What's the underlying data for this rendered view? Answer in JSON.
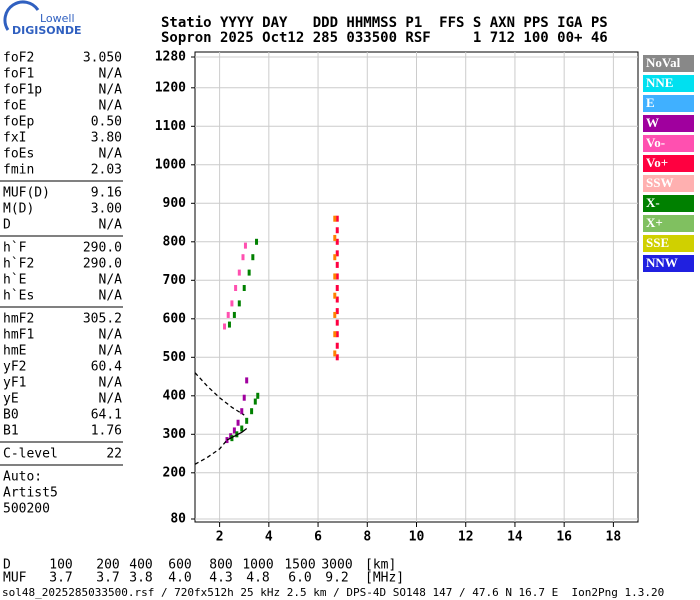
{
  "logo": {
    "line1": "Lowell",
    "line2": "DIGISONDE"
  },
  "header": {
    "line1": "Statio YYYY DAY   DDD HHMMSS P1  FFS S AXN PPS IGA PS",
    "line2": "Sopron 2025 Oct12 285 033500 RSF     1 712 100 00+ 46"
  },
  "params": {
    "groups": [
      [
        [
          "foF2",
          "3.050"
        ],
        [
          "foF1",
          "N/A"
        ],
        [
          "foF1p",
          "N/A"
        ],
        [
          "foE",
          "N/A"
        ],
        [
          "foEp",
          "0.50"
        ],
        [
          "fxI",
          "3.80"
        ],
        [
          "foEs",
          "N/A"
        ],
        [
          "fmin",
          "2.03"
        ]
      ],
      [
        [
          "MUF(D)",
          "9.16"
        ],
        [
          "M(D)",
          "3.00"
        ],
        [
          "D",
          "N/A"
        ]
      ],
      [
        [
          "h`F",
          "290.0"
        ],
        [
          "h`F2",
          "290.0"
        ],
        [
          "h`E",
          "N/A"
        ],
        [
          "h`Es",
          "N/A"
        ]
      ],
      [
        [
          "hmF2",
          "305.2"
        ],
        [
          "hmF1",
          "N/A"
        ],
        [
          "hmE",
          "N/A"
        ],
        [
          "yF2",
          "60.4"
        ],
        [
          "yF1",
          "N/A"
        ],
        [
          "yE",
          "N/A"
        ],
        [
          "B0",
          "64.1"
        ],
        [
          "B1",
          "1.76"
        ]
      ],
      [
        [
          "C-level",
          "22"
        ]
      ]
    ],
    "auto": [
      "Auto:",
      "Artist5",
      "500200"
    ]
  },
  "chart_data": {
    "type": "scatter",
    "xlim": [
      1,
      19
    ],
    "xticks": [
      2,
      4,
      6,
      8,
      10,
      12,
      14,
      16,
      18
    ],
    "ylim": [
      80,
      1280
    ],
    "yticks": [
      80,
      200,
      300,
      400,
      500,
      600,
      700,
      800,
      900,
      1000,
      1100,
      1200,
      1280
    ],
    "grid": true,
    "series": [
      {
        "color": "#a0009e",
        "style": "points",
        "x": [
          2.3,
          2.45,
          2.6,
          2.75,
          2.9,
          3.0,
          3.1
        ],
        "values": [
          285,
          295,
          310,
          330,
          360,
          395,
          440
        ]
      },
      {
        "color": "#008000",
        "style": "points",
        "x": [
          2.5,
          2.7,
          2.9,
          3.1,
          3.3,
          3.45,
          3.55
        ],
        "values": [
          290,
          300,
          315,
          335,
          360,
          385,
          400
        ]
      },
      {
        "color": "#ff50b0",
        "style": "points",
        "x": [
          2.2,
          2.35,
          2.5,
          2.65,
          2.8,
          2.95,
          3.05
        ],
        "values": [
          580,
          610,
          640,
          680,
          720,
          760,
          790
        ]
      },
      {
        "color": "#008000",
        "style": "points",
        "x": [
          2.4,
          2.6,
          2.8,
          3.0,
          3.2,
          3.35,
          3.5
        ],
        "values": [
          585,
          610,
          640,
          680,
          720,
          760,
          800
        ]
      },
      {
        "color": "#ff0040",
        "style": "points",
        "x": [
          6.78,
          6.78,
          6.78,
          6.78,
          6.78,
          6.78,
          6.78,
          6.78,
          6.78,
          6.78,
          6.78,
          6.78,
          6.78
        ],
        "values": [
          500,
          530,
          560,
          590,
          620,
          650,
          680,
          710,
          740,
          770,
          800,
          830,
          860
        ]
      },
      {
        "color": "#ff8000",
        "style": "points",
        "x": [
          6.68,
          6.68,
          6.68,
          6.68,
          6.68,
          6.68,
          6.68,
          6.68
        ],
        "values": [
          510,
          560,
          610,
          660,
          710,
          760,
          810,
          860
        ]
      },
      {
        "color": "#000000",
        "style": "dashed",
        "x": [
          1.0,
          1.5,
          2.0,
          2.5,
          3.0
        ],
        "values": [
          460,
          425,
          395,
          370,
          350
        ]
      },
      {
        "color": "#000000",
        "style": "dashed",
        "x": [
          1.0,
          1.5,
          2.0,
          2.3
        ],
        "values": [
          222,
          240,
          262,
          285
        ]
      },
      {
        "color": "#000000",
        "style": "solid",
        "x": [
          2.3,
          2.6,
          2.9,
          3.1
        ],
        "values": [
          285,
          295,
          305,
          315
        ]
      }
    ],
    "legend": [
      {
        "label": "NoVal",
        "color": "#888888"
      },
      {
        "label": "NNE",
        "color": "#00e0f0"
      },
      {
        "label": "E",
        "color": "#40b0ff"
      },
      {
        "label": "W",
        "color": "#a0009e"
      },
      {
        "label": "Vo-",
        "color": "#ff50b0"
      },
      {
        "label": "Vo+",
        "color": "#ff0040"
      },
      {
        "label": "SSW",
        "color": "#ffb0b0"
      },
      {
        "label": "X-",
        "color": "#008000"
      },
      {
        "label": "X+",
        "color": "#80c060"
      },
      {
        "label": "SSE",
        "color": "#d0d000"
      },
      {
        "label": "NNW",
        "color": "#2020e0"
      }
    ]
  },
  "mufd": {
    "rows": [
      [
        "D",
        "100",
        "200",
        "400",
        "600",
        "800",
        "1000",
        "1500",
        "3000",
        "[km]"
      ],
      [
        "MUF",
        "3.7",
        "3.7",
        "3.8",
        "4.0",
        "4.3",
        "4.8",
        "6.0",
        "9.2",
        "[MHz]"
      ]
    ]
  },
  "footer": "sol48_2025285033500.rsf / 720fx512h 25 kHz 2.5 km / DPS-4D SO148 147 / 47.6 N 16.7 E  Ion2Png 1.3.20"
}
